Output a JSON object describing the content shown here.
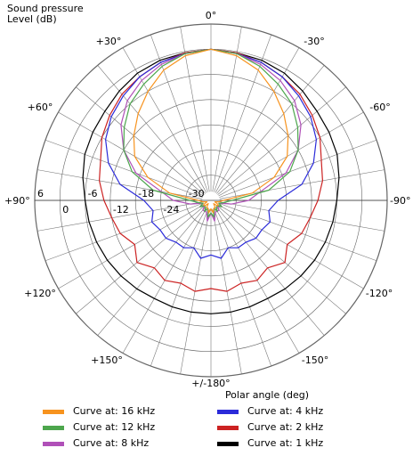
{
  "chart_data": {
    "type": "polar",
    "ylabel": "Sound pressure Level  (dB)",
    "xlabel": "Polar angle  (deg)",
    "radial_ticks": [
      "6",
      "0",
      "-6",
      "-12",
      "-18",
      "-24",
      "-30"
    ],
    "radial_range": [
      -36,
      6
    ],
    "angle_labels": [
      "0°",
      "-30°",
      "-60°",
      "-90°",
      "-120°",
      "-150°",
      "+/-180°",
      "+150°",
      "+120°",
      "+90°",
      "+60°",
      "+30°"
    ],
    "grid": true,
    "series": [
      {
        "name": "Curve at: 16 kHz",
        "color": "#f7931e",
        "angles": [
          0,
          10,
          20,
          30,
          40,
          50,
          60,
          70,
          80,
          90,
          100,
          110,
          120,
          130,
          140,
          150,
          160,
          170,
          180
        ],
        "values": [
          0,
          -1,
          -3,
          -6,
          -9,
          -12,
          -15,
          -20,
          -26,
          -33,
          -34,
          -35,
          -34,
          -34,
          -35,
          -34,
          -34,
          -33,
          -34
        ]
      },
      {
        "name": "Curve at: 12 kHz",
        "color": "#4da64d",
        "angles": [
          0,
          10,
          20,
          30,
          40,
          50,
          60,
          70,
          80,
          90,
          100,
          110,
          120,
          130,
          140,
          150,
          160,
          170,
          180
        ],
        "values": [
          0,
          -0.5,
          -2,
          -4,
          -6,
          -9,
          -12,
          -16,
          -22,
          -31,
          -33,
          -34,
          -33,
          -34,
          -34,
          -33,
          -34,
          -32,
          -33
        ]
      },
      {
        "name": "Curve at: 8 kHz",
        "color": "#b050b8",
        "angles": [
          0,
          10,
          20,
          30,
          40,
          50,
          60,
          70,
          80,
          90,
          100,
          110,
          120,
          130,
          140,
          150,
          160,
          170,
          180
        ],
        "values": [
          0,
          -0.5,
          -1.5,
          -3,
          -5,
          -8,
          -12,
          -17,
          -24,
          -27,
          -31,
          -34,
          -33,
          -34,
          -33,
          -33,
          -33,
          -31,
          -33
        ]
      },
      {
        "name": "Curve at: 4 kHz",
        "color": "#2b2bd9",
        "angles": [
          0,
          10,
          20,
          30,
          40,
          50,
          60,
          70,
          80,
          90,
          100,
          110,
          120,
          130,
          140,
          150,
          160,
          170,
          180
        ],
        "values": [
          0,
          -0.5,
          -1,
          -2,
          -3.5,
          -5,
          -7,
          -10,
          -14,
          -20,
          -22,
          -21,
          -22,
          -22,
          -23,
          -23,
          -24,
          -22,
          -23
        ]
      },
      {
        "name": "Curve at: 2 kHz",
        "color": "#cc2222",
        "angles": [
          0,
          10,
          20,
          30,
          40,
          50,
          60,
          70,
          80,
          90,
          100,
          110,
          120,
          130,
          140,
          150,
          160,
          170,
          180
        ],
        "values": [
          0,
          -0.3,
          -1,
          -2,
          -3,
          -4.5,
          -6,
          -8,
          -9,
          -10.5,
          -12,
          -13,
          -15,
          -13,
          -15,
          -14,
          -15,
          -14,
          -15
        ]
      },
      {
        "name": "Curve at: 1 kHz",
        "color": "#000000",
        "angles": [
          0,
          10,
          20,
          30,
          40,
          50,
          60,
          70,
          80,
          90,
          100,
          110,
          120,
          130,
          140,
          150,
          160,
          170,
          180
        ],
        "values": [
          0,
          -0.3,
          -0.5,
          -1,
          -2,
          -3,
          -3.5,
          -4,
          -5,
          -6,
          -6.5,
          -7,
          -7.5,
          -8,
          -8.5,
          -9,
          -9,
          -9,
          -9
        ]
      }
    ]
  }
}
